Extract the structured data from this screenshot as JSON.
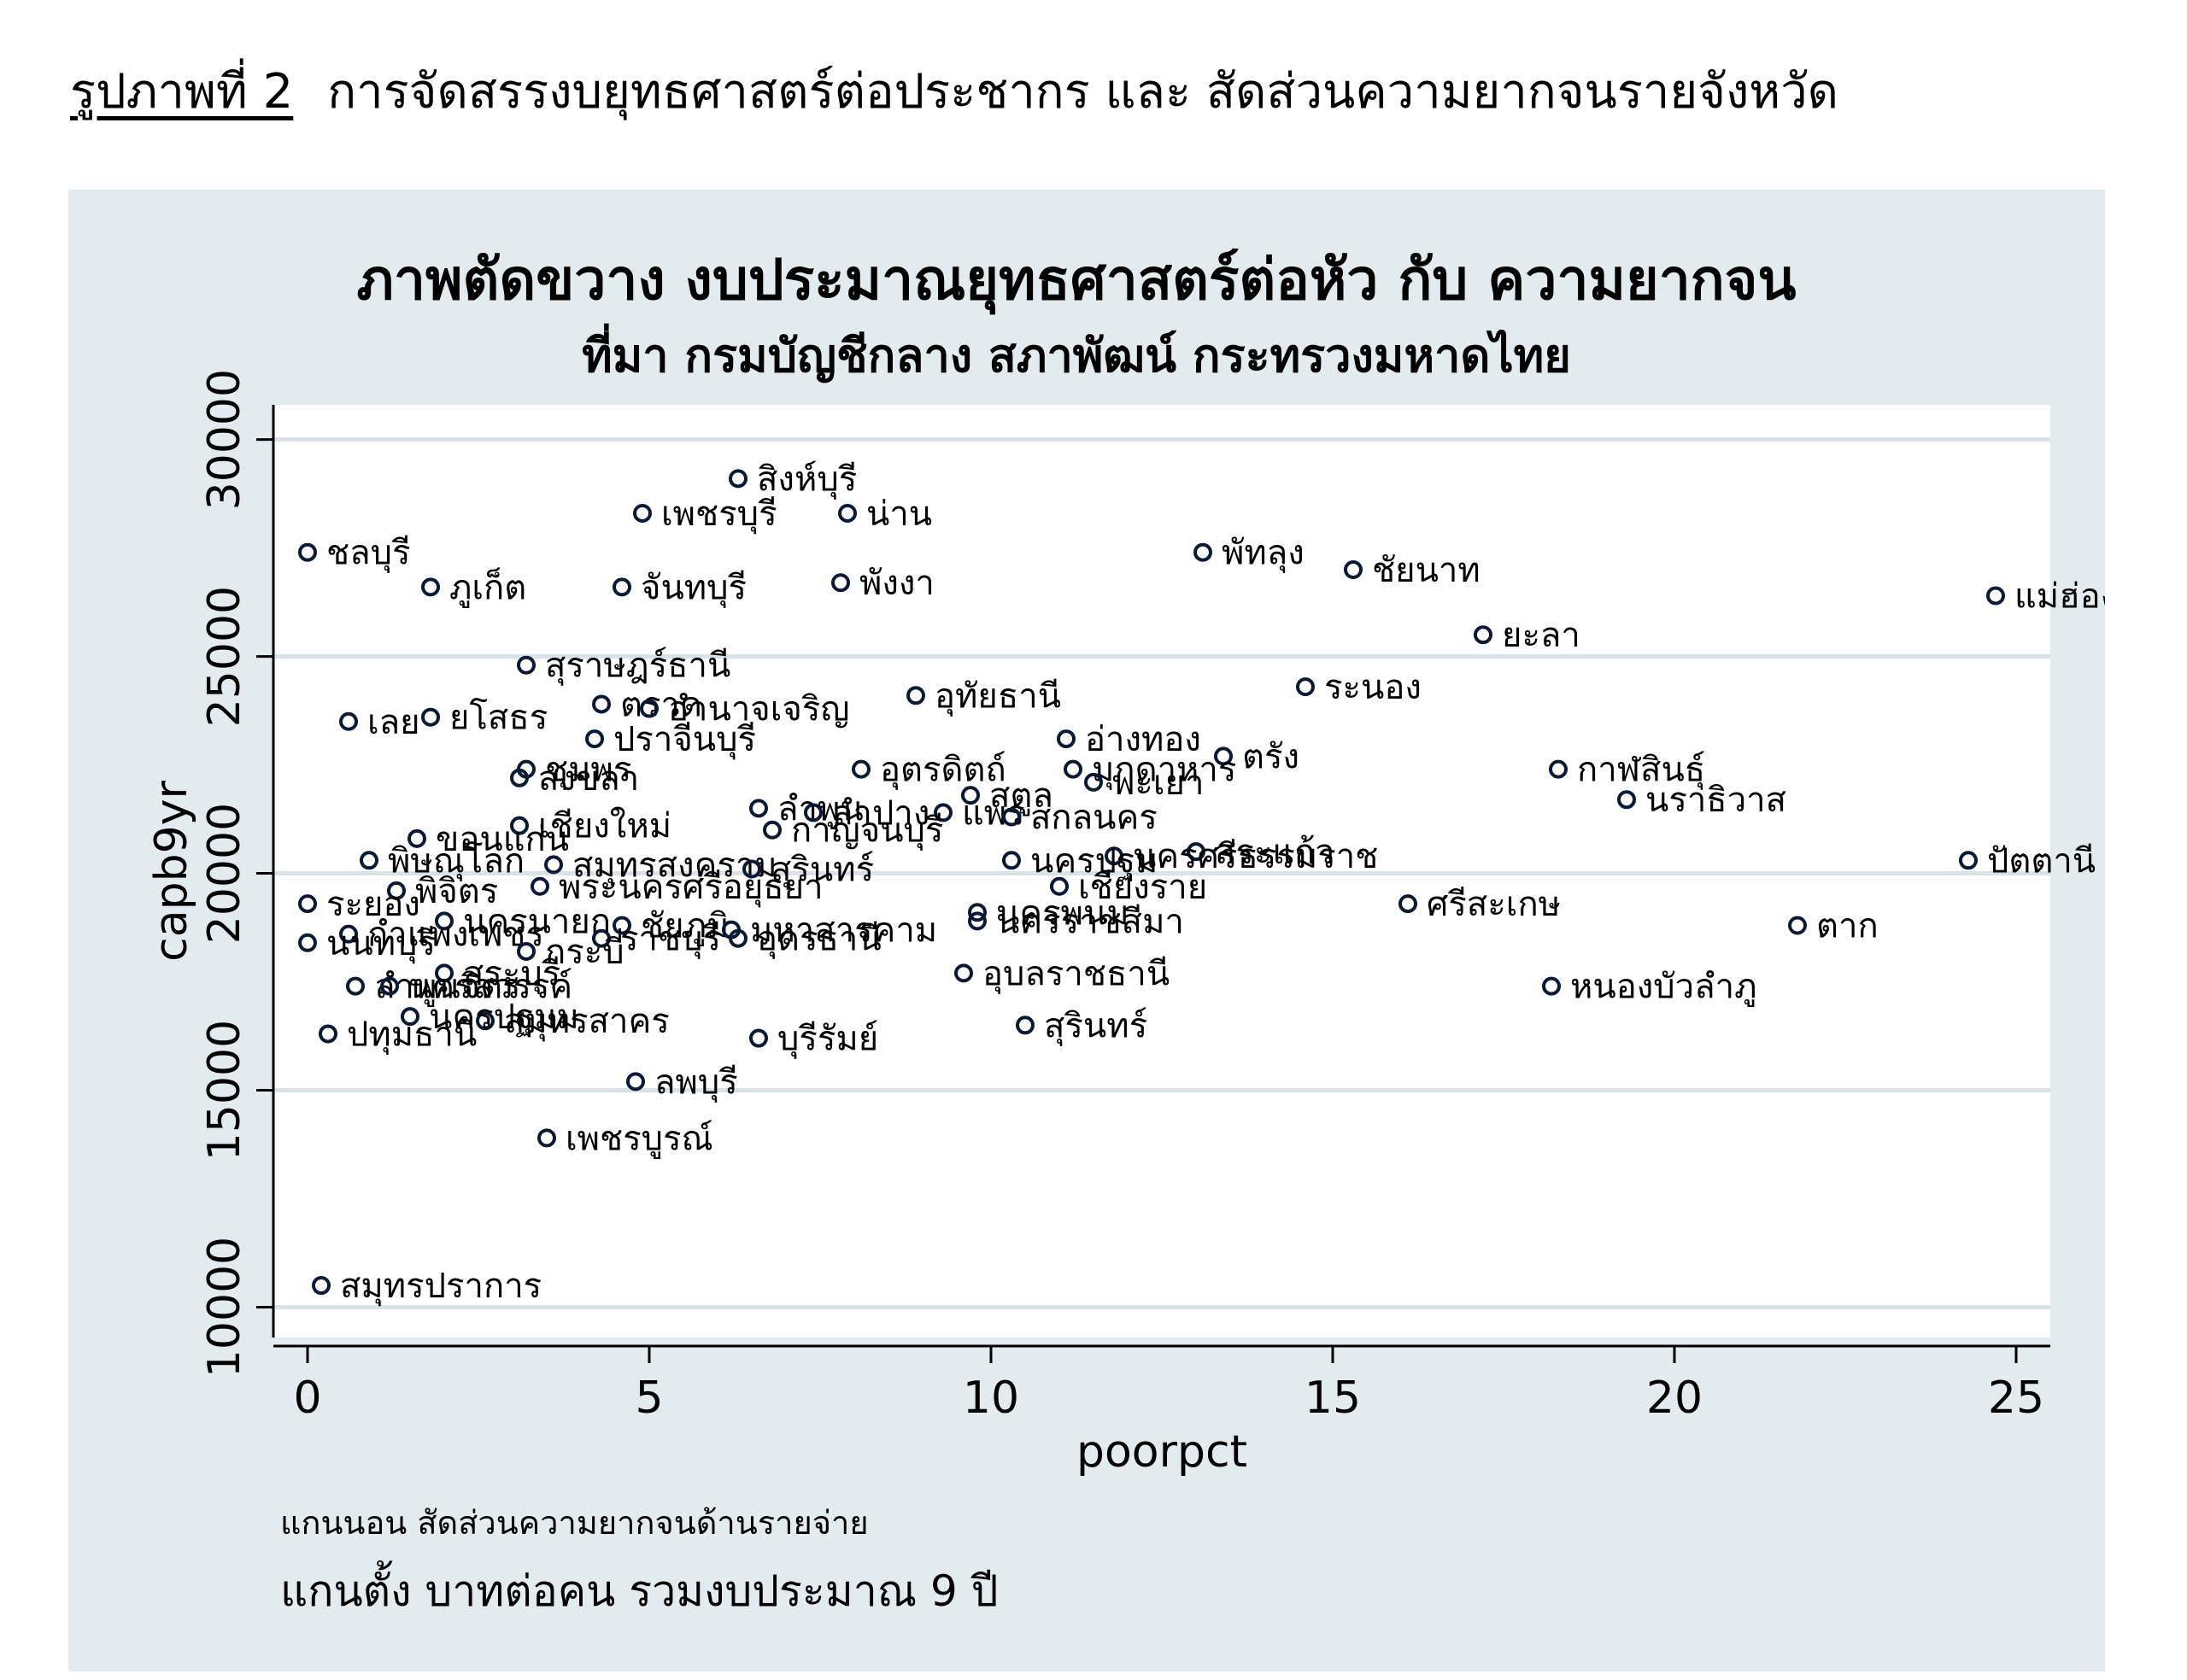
{
  "figure": {
    "number": "รูปภาพที่ 2",
    "caption": "การจัดสรรงบยุทธศาสตร์ต่อประชากร และ สัดส่วนความยากจนรายจังหวัด"
  },
  "notes": {
    "xaxis": "แกนนอน สัดส่วนความยากจนด้านรายจ่าย",
    "yaxis": "แกนตั้ง บาทต่อคน รวมงบประมาณ 9 ปี"
  },
  "colors": {
    "panel_bg": "#e4ebee",
    "plot_bg": "#ffffff",
    "grid": "#d9e2e6",
    "marker": "#0a1a35"
  },
  "chart_data": {
    "type": "scatter",
    "title": "ภาพตัดขวาง งบประมาณยุทธศาสตร์ต่อหัว กับ ความยากจน",
    "subtitle": "ที่มา กรมบัญชีกลาง สภาพัฒน์ กระทรวงมหาดไทย",
    "xlabel": "poorpct",
    "ylabel": "capb9yr",
    "xlim": [
      -0.5,
      25.5
    ],
    "ylim": [
      9300,
      30800
    ],
    "xticks": [
      0,
      5,
      10,
      15,
      20,
      25
    ],
    "yticks": [
      10000,
      15000,
      20000,
      25000,
      30000
    ],
    "grid": "horizontal",
    "legend": "none",
    "points": [
      {
        "label": "สิงห์บุรี",
        "x": 6.3,
        "y": 29100
      },
      {
        "label": "เพชรบุรี",
        "x": 4.9,
        "y": 28300
      },
      {
        "label": "น่าน",
        "x": 7.9,
        "y": 28300
      },
      {
        "label": "ชลบุรี",
        "x": 0.0,
        "y": 27400
      },
      {
        "label": "พัทลุง",
        "x": 13.1,
        "y": 27400
      },
      {
        "label": "ชัยนาท",
        "x": 15.3,
        "y": 27000
      },
      {
        "label": "ภูเก็ต",
        "x": 1.8,
        "y": 26600
      },
      {
        "label": "จันทบุรี",
        "x": 4.6,
        "y": 26600
      },
      {
        "label": "พังงา",
        "x": 7.8,
        "y": 26700
      },
      {
        "label": "แม่ฮ่องสอน",
        "x": 24.7,
        "y": 26400
      },
      {
        "label": "ยะลา",
        "x": 17.2,
        "y": 25500
      },
      {
        "label": "สุราษฎร์ธานี",
        "x": 3.2,
        "y": 24800
      },
      {
        "label": "ระนอง",
        "x": 14.6,
        "y": 24300
      },
      {
        "label": "อุทัยธานี",
        "x": 8.9,
        "y": 24100
      },
      {
        "label": "ตราด",
        "x": 4.3,
        "y": 23900
      },
      {
        "label": "อำนาจเจริญ",
        "x": 5.0,
        "y": 23800
      },
      {
        "label": "เลย",
        "x": 0.6,
        "y": 23500
      },
      {
        "label": "ยโสธร",
        "x": 1.8,
        "y": 23600
      },
      {
        "label": "ปราจีนบุรี",
        "x": 4.2,
        "y": 23100
      },
      {
        "label": "อ่างทอง",
        "x": 11.1,
        "y": 23100
      },
      {
        "label": "ตรัง",
        "x": 13.4,
        "y": 22700
      },
      {
        "label": "ชุมพร",
        "x": 3.2,
        "y": 22400
      },
      {
        "label": "สงขลา",
        "x": 3.1,
        "y": 22200
      },
      {
        "label": "อุตรดิตถ์",
        "x": 8.1,
        "y": 22400
      },
      {
        "label": "มุกดาหาร",
        "x": 11.2,
        "y": 22400
      },
      {
        "label": "พะเยา",
        "x": 11.5,
        "y": 22100
      },
      {
        "label": "กาฬสินธุ์",
        "x": 18.3,
        "y": 22400
      },
      {
        "label": "นราธิวาส",
        "x": 19.3,
        "y": 21700
      },
      {
        "label": "สตูล",
        "x": 9.7,
        "y": 21800
      },
      {
        "label": "ลำพูน",
        "x": 6.6,
        "y": 21500
      },
      {
        "label": "ลำปาง",
        "x": 7.4,
        "y": 21400
      },
      {
        "label": "แพร่",
        "x": 9.3,
        "y": 21400
      },
      {
        "label": "สกลนคร",
        "x": 10.3,
        "y": 21300
      },
      {
        "label": "เชียงใหม่",
        "x": 3.1,
        "y": 21100
      },
      {
        "label": "กาญจนบุรี",
        "x": 6.8,
        "y": 21000
      },
      {
        "label": "ขอนแก่น",
        "x": 1.6,
        "y": 20800
      },
      {
        "label": "สระแก้ว",
        "x": 13.0,
        "y": 20500
      },
      {
        "label": "นครศรีธรรมราช",
        "x": 11.8,
        "y": 20400
      },
      {
        "label": "ปัตตานี",
        "x": 24.3,
        "y": 20300
      },
      {
        "label": "พิษณุโลก",
        "x": 0.9,
        "y": 20300
      },
      {
        "label": "สมุทรสงคราม",
        "x": 3.6,
        "y": 20200
      },
      {
        "label": "สุรินทร์",
        "x": 6.5,
        "y": 20100
      },
      {
        "label": "นครปฐม",
        "x": 10.3,
        "y": 20300
      },
      {
        "label": "พิจิตร",
        "x": 1.3,
        "y": 19600
      },
      {
        "label": "พระนครศรีอยุธยา",
        "x": 3.4,
        "y": 19700
      },
      {
        "label": "ระยอง",
        "x": 0.0,
        "y": 19300
      },
      {
        "label": "เชียงราย",
        "x": 11.0,
        "y": 19700
      },
      {
        "label": "ศรีสะเกษ",
        "x": 16.1,
        "y": 19300
      },
      {
        "label": "นครพนม",
        "x": 9.8,
        "y": 19100
      },
      {
        "label": "นครราชสีมา",
        "x": 9.8,
        "y": 18900
      },
      {
        "label": "ตาก",
        "x": 21.8,
        "y": 18800
      },
      {
        "label": "นครนายก",
        "x": 2.0,
        "y": 18900
      },
      {
        "label": "ชัยภูมิ",
        "x": 4.6,
        "y": 18800
      },
      {
        "label": "มหาสารคาม",
        "x": 6.2,
        "y": 18700
      },
      {
        "label": "กำแพงเพชร",
        "x": 0.6,
        "y": 18600
      },
      {
        "label": "ราชบุรี",
        "x": 4.3,
        "y": 18500
      },
      {
        "label": "อุดรธานี",
        "x": 6.3,
        "y": 18500
      },
      {
        "label": "นนทบุรี",
        "x": 0.0,
        "y": 18400
      },
      {
        "label": "กระบี่",
        "x": 3.2,
        "y": 18200
      },
      {
        "label": "อุบลราชธานี",
        "x": 9.6,
        "y": 17700
      },
      {
        "label": "สระบุรี",
        "x": 2.0,
        "y": 17700
      },
      {
        "label": "หนองบัวลำภู",
        "x": 18.2,
        "y": 17400
      },
      {
        "label": "ลำพูนจิตร",
        "x": 0.7,
        "y": 17400
      },
      {
        "label": "นครสวรรค์",
        "x": 1.2,
        "y": 17400
      },
      {
        "label": "สมุทรสาคร",
        "x": 2.6,
        "y": 16600
      },
      {
        "label": "นครปฐมม",
        "x": 1.5,
        "y": 16700
      },
      {
        "label": "สุรินทร์",
        "x": 10.5,
        "y": 16500
      },
      {
        "label": "ปทุมธานี",
        "x": 0.3,
        "y": 16300
      },
      {
        "label": "บุรีรัมย์",
        "x": 6.6,
        "y": 16200
      },
      {
        "label": "ลพบุรี",
        "x": 4.8,
        "y": 15200
      },
      {
        "label": "เพชรบูรณ์",
        "x": 3.5,
        "y": 13900
      },
      {
        "label": "สมุทรปราการ",
        "x": 0.2,
        "y": 10500
      }
    ]
  }
}
